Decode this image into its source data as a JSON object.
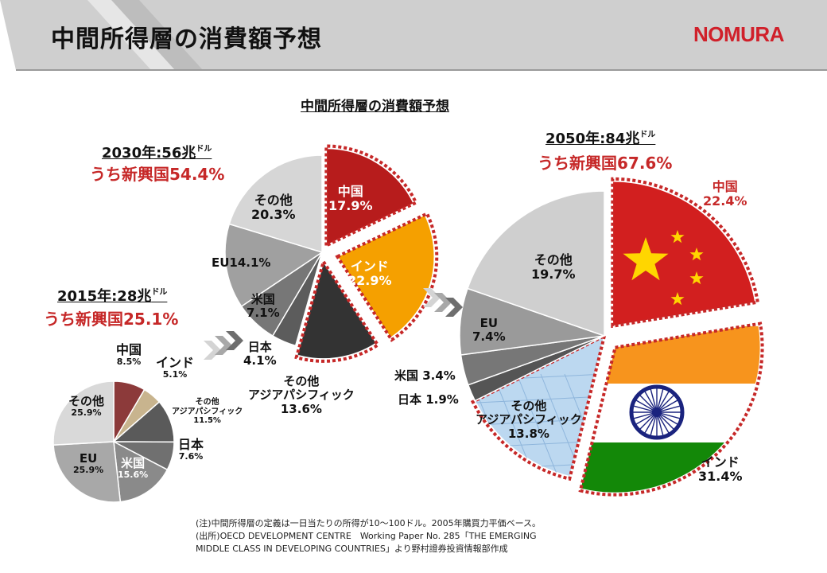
{
  "title": "中間所得層の消費額予想",
  "logo": "NOMURA",
  "chart_data": [
    {
      "type": "pie",
      "title": "2015年:28兆ドル",
      "year_label": "2015年:28兆",
      "unit": "ドル",
      "emerging_share": "うち新興国25.1%",
      "slices": [
        {
          "label": "中国",
          "value": 8.5,
          "color": "#8c3a3a"
        },
        {
          "label": "インド",
          "value": 5.1,
          "color": "#c8b48e"
        },
        {
          "label": "その他アジアパシフィック",
          "value": 11.5,
          "color": "#5a5a5a"
        },
        {
          "label": "日本",
          "value": 7.6,
          "color": "#707070"
        },
        {
          "label": "米国",
          "value": 15.6,
          "color": "#8a8a8a"
        },
        {
          "label": "EU",
          "value": 25.9,
          "color": "#a8a8a8"
        },
        {
          "label": "その他",
          "value": 25.9,
          "color": "#d9d9d9"
        }
      ]
    },
    {
      "type": "pie",
      "title": "2030年:56兆ドル",
      "year_label": "2030年:56兆",
      "unit": "ドル",
      "emerging_share": "うち新興国54.4%",
      "slices": [
        {
          "label": "中国",
          "value": 17.9,
          "color": "#b71c1c"
        },
        {
          "label": "インド",
          "value": 22.9,
          "color": "#f5a000"
        },
        {
          "label": "その他アジアパシフィック",
          "value": 13.6,
          "color": "#333333"
        },
        {
          "label": "日本",
          "value": 4.1,
          "color": "#5c5c5c"
        },
        {
          "label": "米国",
          "value": 7.1,
          "color": "#777777"
        },
        {
          "label": "EU",
          "value": 14.1,
          "color": "#a0a0a0"
        },
        {
          "label": "その他",
          "value": 20.3,
          "color": "#d6d6d6"
        }
      ]
    },
    {
      "type": "pie",
      "title": "2050年:84兆ドル",
      "year_label": "2050年:84兆",
      "unit": "ドル",
      "emerging_share": "うち新興国67.6%",
      "slices": [
        {
          "label": "中国",
          "value": 22.4,
          "color": "#d21f1f"
        },
        {
          "label": "インド",
          "value": 31.4,
          "color": "#ffffff"
        },
        {
          "label": "その他アジアパシフィック",
          "value": 13.8,
          "color": "#bcd8f0"
        },
        {
          "label": "日本",
          "value": 1.9,
          "color": "#555555"
        },
        {
          "label": "米国",
          "value": 3.4,
          "color": "#777777"
        },
        {
          "label": "EU",
          "value": 7.4,
          "color": "#9a9a9a"
        },
        {
          "label": "その他",
          "value": 19.7,
          "color": "#cfcfcf"
        }
      ]
    }
  ],
  "labels_2015": {
    "china": "中国",
    "china_pct": "8.5%",
    "india": "インド",
    "india_pct": "5.1%",
    "other_ap_1": "その他",
    "other_ap_2": "アジアパシフィック",
    "other_ap_pct": "11.5%",
    "japan": "日本",
    "japan_pct": "7.6%",
    "us": "米国",
    "us_pct": "15.6%",
    "eu": "EU",
    "eu_pct": "25.9%",
    "other": "その他",
    "other_pct": "25.9%"
  },
  "labels_2030": {
    "china": "中国",
    "china_pct": "17.9%",
    "india": "インド",
    "india_pct": "22.9%",
    "other_ap_1": "その他",
    "other_ap_2": "アジアパシフィック",
    "other_ap_pct": "13.6%",
    "japan": "日本",
    "japan_pct": "4.1%",
    "us": "米国",
    "us_pct": "7.1%",
    "eu": "EU14.1%",
    "other": "その他",
    "other_pct": "20.3%"
  },
  "labels_2050": {
    "china": "中国",
    "china_pct": "22.4%",
    "india": "インド",
    "india_pct": "31.4%",
    "other_ap_1": "その他",
    "other_ap_2": "アジアパシフィック",
    "other_ap_pct": "13.8%",
    "japan": "日本 1.9%",
    "us": "米国 3.4%",
    "eu": "EU",
    "eu_pct": "7.4%",
    "other": "その他",
    "other_pct": "19.7%"
  },
  "notes": [
    "(注)中間所得層の定義は一日当たりの所得が10～100ドル。2005年購買力平価ベース。",
    "(出所)OECD DEVELOPMENT CENTRE　Working Paper No. 285「THE EMERGING",
    "MIDDLE CLASS IN DEVELOPING COUNTRIES」より野村證券投資情報部作成"
  ],
  "colors": {
    "accent_red": "#c62828",
    "brand_red": "#d0202a",
    "header_gray": "#c8c8c8"
  }
}
